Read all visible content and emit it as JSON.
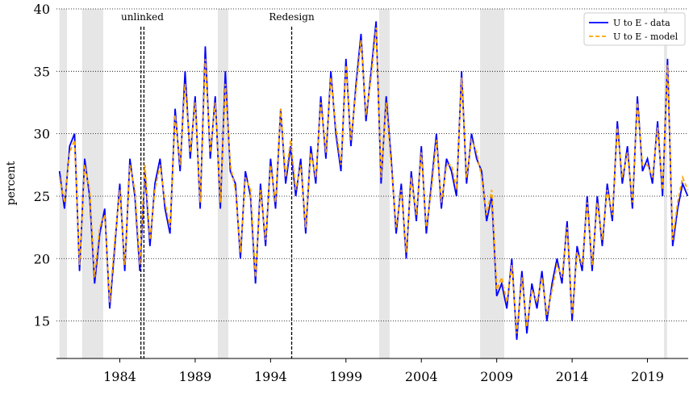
{
  "chart_data": {
    "type": "line",
    "ylabel": "percent",
    "xlim": [
      1979.8,
      2021.7
    ],
    "ylim": [
      12,
      40
    ],
    "xticks": [
      1984,
      1989,
      1994,
      1999,
      2004,
      2009,
      2014,
      2019
    ],
    "yticks": [
      15,
      20,
      25,
      30,
      35,
      40
    ],
    "grid": true,
    "legend": "upper right",
    "shaded_periods": [
      [
        1980.0,
        1980.5
      ],
      [
        1981.5,
        1982.9
      ],
      [
        1990.5,
        1991.2
      ],
      [
        2001.2,
        2001.9
      ],
      [
        2007.9,
        2009.5
      ],
      [
        2020.1,
        2020.3
      ]
    ],
    "vlines": [
      1985.4,
      1985.6,
      1995.4
    ],
    "annotations": [
      {
        "text": "unlinked",
        "x": 1985.5
      },
      {
        "text": "Redesign",
        "x": 1995.4
      }
    ],
    "x": [
      1980,
      1980.33,
      1980.67,
      1981,
      1981.33,
      1981.67,
      1982,
      1982.33,
      1982.67,
      1983,
      1983.33,
      1983.67,
      1984,
      1984.33,
      1984.67,
      1985,
      1985.33,
      1985.67,
      1986,
      1986.33,
      1986.67,
      1987,
      1987.33,
      1987.67,
      1988,
      1988.33,
      1988.67,
      1989,
      1989.33,
      1989.67,
      1990,
      1990.33,
      1990.67,
      1991,
      1991.33,
      1991.67,
      1992,
      1992.33,
      1992.67,
      1993,
      1993.33,
      1993.67,
      1994,
      1994.33,
      1994.67,
      1995,
      1995.33,
      1995.67,
      1996,
      1996.33,
      1996.67,
      1997,
      1997.33,
      1997.67,
      1998,
      1998.33,
      1998.67,
      1999,
      1999.33,
      1999.67,
      2000,
      2000.33,
      2000.67,
      2001,
      2001.33,
      2001.67,
      2002,
      2002.33,
      2002.67,
      2003,
      2003.33,
      2003.67,
      2004,
      2004.33,
      2004.67,
      2005,
      2005.33,
      2005.67,
      2006,
      2006.33,
      2006.67,
      2007,
      2007.33,
      2007.67,
      2008,
      2008.33,
      2008.67,
      2009,
      2009.33,
      2009.67,
      2010,
      2010.33,
      2010.67,
      2011,
      2011.33,
      2011.67,
      2012,
      2012.33,
      2012.67,
      2013,
      2013.33,
      2013.67,
      2014,
      2014.33,
      2014.67,
      2015,
      2015.33,
      2015.67,
      2016,
      2016.33,
      2016.67,
      2017,
      2017.33,
      2017.67,
      2018,
      2018.33,
      2018.67,
      2019,
      2019.33,
      2019.67,
      2020,
      2020.33,
      2020.67,
      2021,
      2021.33,
      2021.67
    ],
    "series": [
      {
        "name": "U to E - data",
        "color": "#0000ff",
        "dash": false,
        "values": [
          27,
          24,
          29,
          30,
          19,
          28,
          25,
          18,
          22,
          24,
          16,
          21,
          26,
          19,
          28,
          25,
          19,
          27,
          21,
          26,
          28,
          24,
          22,
          32,
          27,
          35,
          28,
          33,
          24,
          37,
          28,
          33,
          24,
          35,
          27,
          26,
          20,
          27,
          25,
          18,
          26,
          21,
          28,
          24,
          32,
          26,
          29,
          25,
          28,
          22,
          29,
          26,
          33,
          28,
          35,
          30,
          27,
          36,
          29,
          34,
          38,
          31,
          35,
          39,
          26,
          33,
          28,
          22,
          26,
          20,
          27,
          23,
          29,
          22,
          26,
          30,
          24,
          28,
          27,
          25,
          35,
          26,
          30,
          28,
          27,
          23,
          25,
          17,
          18,
          16,
          20,
          13.5,
          19,
          14,
          18,
          16,
          19,
          15,
          18,
          20,
          18,
          23,
          15,
          21,
          19,
          25,
          19,
          25,
          21,
          26,
          23,
          31,
          26,
          29,
          24,
          33,
          27,
          28,
          26,
          31,
          25,
          36,
          21,
          24,
          26,
          25
        ]
      },
      {
        "name": "U to E - model",
        "color": "#ffa500",
        "dash": true,
        "values": [
          26.5,
          24.5,
          28.5,
          29.5,
          19.5,
          27.5,
          25.5,
          18.5,
          22.5,
          23.5,
          16.5,
          21.5,
          25.5,
          19.5,
          27.5,
          25.5,
          19.5,
          27.5,
          21.5,
          25.5,
          27.5,
          24.5,
          22.5,
          31.5,
          27.5,
          34,
          28.5,
          32.5,
          24.5,
          36,
          28.5,
          32.5,
          24.5,
          34,
          27.5,
          25.5,
          20.5,
          26.5,
          25.5,
          18.5,
          25.5,
          21.5,
          27.5,
          24.5,
          32,
          26.5,
          29.5,
          25.5,
          27.5,
          22.5,
          28.5,
          26.5,
          32.5,
          28.5,
          34.5,
          30.5,
          27.5,
          35.5,
          29.5,
          33.5,
          37.5,
          31.5,
          34.5,
          38.5,
          26.5,
          32.5,
          27.5,
          22.5,
          25.5,
          20.5,
          26.5,
          23.5,
          28.5,
          22.5,
          25.5,
          29.5,
          24.5,
          27.5,
          27.5,
          25.5,
          34.5,
          26.5,
          29.5,
          28.5,
          26.5,
          23.5,
          25.5,
          17.5,
          18.5,
          16.5,
          19.5,
          14,
          18.5,
          14.5,
          17.5,
          16.5,
          18.5,
          15.5,
          17.5,
          19.5,
          18.5,
          22.5,
          15.5,
          20.5,
          19.5,
          24.5,
          19.5,
          24.5,
          21.5,
          25.5,
          23.5,
          30.5,
          26.5,
          28.5,
          24.5,
          32.5,
          27.5,
          27.5,
          26.5,
          30.5,
          25.5,
          35.5,
          21.5,
          24.5,
          26.5,
          25.5
        ]
      }
    ]
  }
}
